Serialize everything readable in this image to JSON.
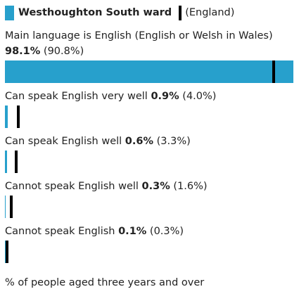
{
  "chart_data": {
    "type": "bar",
    "categories": [
      "Main language is English (English or Welsh in Wales)",
      "Can speak English very well",
      "Can speak English well",
      "Cannot speak English well",
      "Cannot speak English"
    ],
    "series": [
      {
        "name": "Westhoughton South ward",
        "color": "#27a0cc",
        "values": [
          98.1,
          0.9,
          0.6,
          0.3,
          0.1
        ],
        "value_labels": [
          "98.1%",
          "0.9%",
          "0.6%",
          "0.3%",
          "0.1%"
        ]
      },
      {
        "name": "(England)",
        "color": "#000000",
        "values": [
          90.8,
          4.0,
          3.3,
          1.6,
          0.3
        ],
        "value_labels": [
          "(90.8%)",
          "(4.0%)",
          "(3.3%)",
          "(1.6%)",
          "(0.3%)"
        ]
      }
    ],
    "xlim": [
      0,
      100
    ],
    "footnote": "% of people aged three years and over"
  }
}
